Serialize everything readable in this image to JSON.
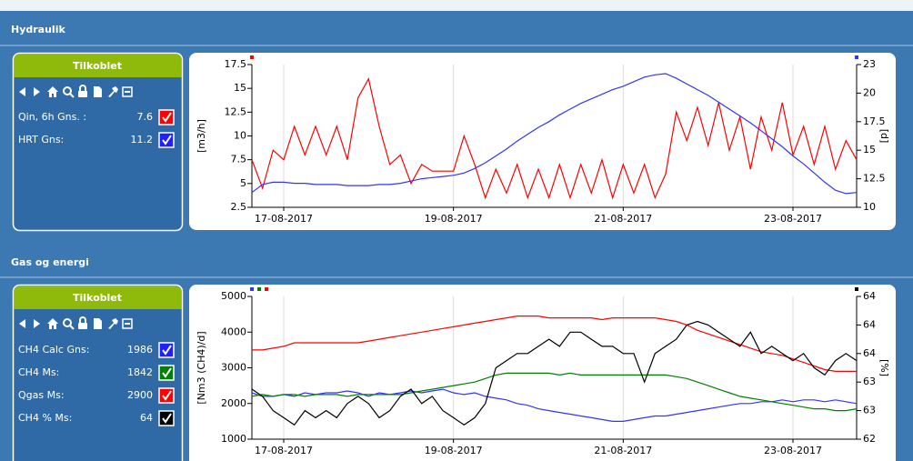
{
  "sections": [
    {
      "title": "Hydraulik",
      "panel": {
        "status": "Tilkoblet",
        "rows": [
          {
            "label": "Qin, 6h Gns. :",
            "value": "7.6",
            "color": "#ff0000"
          },
          {
            "label": "HRT Gns:",
            "value": "11.2",
            "color": "#1f1fff"
          }
        ]
      }
    },
    {
      "title": "Gas og energi",
      "panel": {
        "status": "Tilkoblet",
        "rows": [
          {
            "label": "CH4 Calc Gns:",
            "value": "1986",
            "color": "#1f1fff"
          },
          {
            "label": "CH4 Ms:",
            "value": "1842",
            "color": "#008000"
          },
          {
            "label": "Qgas Ms:",
            "value": "2900",
            "color": "#ff0000"
          },
          {
            "label": "CH4 % Ms:",
            "value": "64",
            "color": "#000000"
          }
        ]
      }
    }
  ],
  "chart_data": [
    {
      "type": "line",
      "ylabel": "[m3/h]",
      "y2label": "[d]",
      "grid": true,
      "categories": [
        null,
        null,
        null,
        "17-08-2017",
        null,
        null,
        null,
        null,
        null,
        null,
        null,
        null,
        null,
        null,
        null,
        null,
        null,
        null,
        null,
        "19-08-2017",
        null,
        null,
        null,
        null,
        null,
        null,
        null,
        null,
        null,
        null,
        null,
        null,
        null,
        null,
        null,
        "21-08-2017",
        null,
        null,
        null,
        null,
        null,
        null,
        null,
        null,
        null,
        null,
        null,
        null,
        null,
        null,
        null,
        "23-08-2017",
        null,
        null,
        null,
        null,
        null,
        null
      ],
      "ylim": [
        2.5,
        17.5
      ],
      "yticks": [
        2.5,
        5,
        7.5,
        10,
        12.5,
        15,
        17.5
      ],
      "y2lim": [
        10,
        22.5
      ],
      "y2ticks": [
        10,
        12.5,
        15,
        17.5,
        20,
        {
          "value": 22.5,
          "label": "23"
        }
      ],
      "series": [
        {
          "name": "Qin, 6h Gns. :",
          "color": "#ff0000",
          "values": [
            7.5,
            4.5,
            8.5,
            7.5,
            11.0,
            8.0,
            11.0,
            8.0,
            11.0,
            7.5,
            14.0,
            16.0,
            11.0,
            7.0,
            8.0,
            5.0,
            7.0,
            6.3,
            6.3,
            6.3,
            10.0,
            7.0,
            3.5,
            6.5,
            4.0,
            7.0,
            3.5,
            6.5,
            3.5,
            7.0,
            3.5,
            7.0,
            4.0,
            7.5,
            3.5,
            7.0,
            4.0,
            7.0,
            3.5,
            6.0,
            12.5,
            9.5,
            13.0,
            9.0,
            13.5,
            8.5,
            12.0,
            6.5,
            12.0,
            8.5,
            13.5,
            8.0,
            11.0,
            7.0,
            11.0,
            6.5,
            9.5,
            7.5
          ]
        },
        {
          "name": "HRT Gns:",
          "color": "#3333ff",
          "axis": "y2",
          "values": [
            11.3,
            12.0,
            12.2,
            12.2,
            12.1,
            12.1,
            12.0,
            12.0,
            12.0,
            11.9,
            11.9,
            11.9,
            12.0,
            12.0,
            12.1,
            12.3,
            12.5,
            12.6,
            12.7,
            12.8,
            13.0,
            13.4,
            13.9,
            14.5,
            15.1,
            15.8,
            16.4,
            17.0,
            17.5,
            18.1,
            18.6,
            19.1,
            19.5,
            19.9,
            20.3,
            20.6,
            21.0,
            21.4,
            21.6,
            21.7,
            21.3,
            20.8,
            20.3,
            19.8,
            19.2,
            18.6,
            18.0,
            17.4,
            16.7,
            16.0,
            15.3,
            14.5,
            13.8,
            13.0,
            12.2,
            11.5,
            11.2,
            11.3
          ]
        }
      ]
    },
    {
      "type": "line",
      "ylabel": "[Nm3 (CH4)/d]",
      "y2label": "[%]",
      "grid": true,
      "categories": [
        null,
        null,
        null,
        "17-08-2017",
        null,
        null,
        null,
        null,
        null,
        null,
        null,
        null,
        null,
        null,
        null,
        null,
        null,
        null,
        null,
        "19-08-2017",
        null,
        null,
        null,
        null,
        null,
        null,
        null,
        null,
        null,
        null,
        null,
        null,
        null,
        null,
        null,
        "21-08-2017",
        null,
        null,
        null,
        null,
        null,
        null,
        null,
        null,
        null,
        null,
        null,
        null,
        null,
        null,
        null,
        "23-08-2017",
        null,
        null,
        null,
        null,
        null,
        null
      ],
      "ylim": [
        1000,
        5000
      ],
      "yticks": [
        1000,
        2000,
        3000,
        4000,
        5000
      ],
      "y2lim": [
        62.3,
        64.3
      ],
      "y2ticks": [
        {
          "value": 62.3,
          "label": "62"
        },
        {
          "value": 62.7,
          "label": "63"
        },
        {
          "value": 63.1,
          "label": "63"
        },
        {
          "value": 63.5,
          "label": "64"
        },
        {
          "value": 63.9,
          "label": "64"
        },
        {
          "value": 64.3,
          "label": "64"
        }
      ],
      "series": [
        {
          "name": "CH4 Calc Gns:",
          "color": "#3333ff",
          "values": [
            2300,
            2200,
            2200,
            2250,
            2200,
            2300,
            2250,
            2300,
            2300,
            2350,
            2300,
            2200,
            2300,
            2250,
            2300,
            2350,
            2300,
            2350,
            2400,
            2300,
            2250,
            2300,
            2200,
            2150,
            2100,
            2000,
            1950,
            1850,
            1800,
            1750,
            1700,
            1650,
            1600,
            1550,
            1500,
            1500,
            1550,
            1600,
            1650,
            1650,
            1700,
            1750,
            1800,
            1850,
            1900,
            1950,
            2000,
            2000,
            2050,
            2050,
            2100,
            2050,
            2100,
            2100,
            2050,
            2100,
            2050,
            2000
          ]
        },
        {
          "name": "CH4 Ms:",
          "color": "#008000",
          "values": [
            2200,
            2250,
            2200,
            2250,
            2250,
            2200,
            2250,
            2250,
            2250,
            2200,
            2250,
            2250,
            2250,
            2250,
            2250,
            2300,
            2350,
            2400,
            2450,
            2500,
            2550,
            2600,
            2700,
            2800,
            2850,
            2850,
            2850,
            2850,
            2850,
            2800,
            2850,
            2800,
            2800,
            2800,
            2800,
            2800,
            2800,
            2800,
            2800,
            2800,
            2750,
            2700,
            2600,
            2500,
            2400,
            2300,
            2200,
            2150,
            2100,
            2050,
            2000,
            1950,
            1900,
            1850,
            1850,
            1800,
            1800,
            1850
          ]
        },
        {
          "name": "Qgas Ms:",
          "color": "#ff0000",
          "values": [
            3500,
            3500,
            3550,
            3600,
            3700,
            3700,
            3700,
            3700,
            3700,
            3700,
            3700,
            3750,
            3800,
            3850,
            3900,
            3950,
            4000,
            4050,
            4100,
            4150,
            4200,
            4250,
            4300,
            4350,
            4400,
            4450,
            4450,
            4450,
            4400,
            4400,
            4400,
            4400,
            4400,
            4350,
            4400,
            4400,
            4400,
            4400,
            4400,
            4350,
            4300,
            4200,
            4050,
            3950,
            3850,
            3750,
            3650,
            3550,
            3450,
            3400,
            3350,
            3250,
            3150,
            3050,
            2950,
            2900,
            2900,
            2900
          ]
        },
        {
          "name": "CH4 % Ms:",
          "color": "#000000",
          "axis": "y2",
          "values": [
            63.0,
            62.9,
            62.7,
            62.6,
            62.5,
            62.7,
            62.6,
            62.7,
            62.6,
            62.8,
            62.9,
            62.8,
            62.6,
            62.7,
            62.9,
            63.0,
            62.8,
            62.9,
            62.7,
            62.6,
            62.5,
            62.6,
            62.8,
            63.3,
            63.4,
            63.5,
            63.5,
            63.6,
            63.7,
            63.6,
            63.8,
            63.8,
            63.7,
            63.6,
            63.6,
            63.5,
            63.5,
            63.1,
            63.5,
            63.6,
            63.7,
            63.9,
            63.95,
            63.9,
            63.8,
            63.7,
            63.6,
            63.8,
            63.5,
            63.6,
            63.5,
            63.4,
            63.5,
            63.3,
            63.2,
            63.4,
            63.5,
            63.4
          ]
        }
      ]
    }
  ]
}
